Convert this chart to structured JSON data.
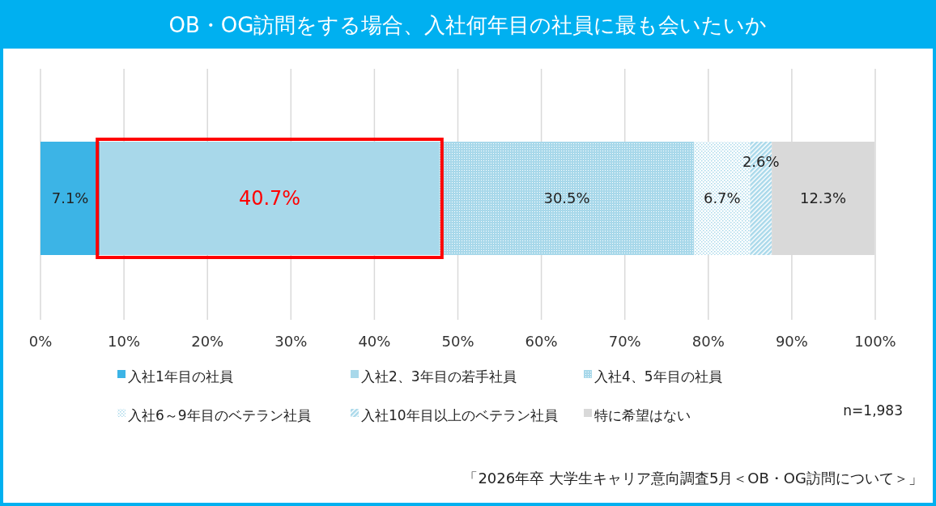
{
  "chart_data": {
    "type": "bar",
    "orientation": "horizontal",
    "stacked": true,
    "title": "OB・OG訪問をする場合、入社何年目の社員に最も会いたいか",
    "categories": [
      null
    ],
    "series": [
      {
        "name": "入社1年目の社員",
        "color": "#3cb4e6",
        "values": [
          7.1
        ],
        "value_labels": [
          "7.1%"
        ]
      },
      {
        "name": "入社2、3年目の若手社員",
        "color": "#a8d8ea",
        "values": [
          40.7
        ],
        "value_labels": [
          "40.7%"
        ]
      },
      {
        "name": "入社4、5年目の社員",
        "color": "#a8d8ea",
        "values": [
          30.5
        ],
        "value_labels": [
          "30.5%"
        ]
      },
      {
        "name": "入社6～9年目のベテラン社員",
        "color": "#a8d8ea",
        "values": [
          6.7
        ],
        "value_labels": [
          "6.7%"
        ]
      },
      {
        "name": "入社10年目以上のベテラン社員",
        "color": "#a8d8ea",
        "values": [
          2.6
        ],
        "value_labels": [
          "2.6%"
        ]
      },
      {
        "name": "特に希望はない",
        "color": "#d9d9d9",
        "values": [
          12.3
        ],
        "value_labels": [
          "12.3%"
        ]
      }
    ],
    "xlim": [
      0,
      100
    ],
    "xticks": [
      {
        "value": 0,
        "label": "0%"
      },
      {
        "value": 10,
        "label": "10%"
      },
      {
        "value": 20,
        "label": "20%"
      },
      {
        "value": 30,
        "label": "30%"
      },
      {
        "value": 40,
        "label": "40%"
      },
      {
        "value": 50,
        "label": "50%"
      },
      {
        "value": 60,
        "label": "60%"
      },
      {
        "value": 70,
        "label": "70%"
      },
      {
        "value": 80,
        "label": "80%"
      },
      {
        "value": 90,
        "label": "90%"
      },
      {
        "value": 100,
        "label": "100%"
      }
    ],
    "grid": "x",
    "legend": "bottom",
    "annotations": [
      "n=1,983",
      "「2026年卒  大学生キャリア意向調査5月＜OB・OG訪問について＞」"
    ]
  }
}
